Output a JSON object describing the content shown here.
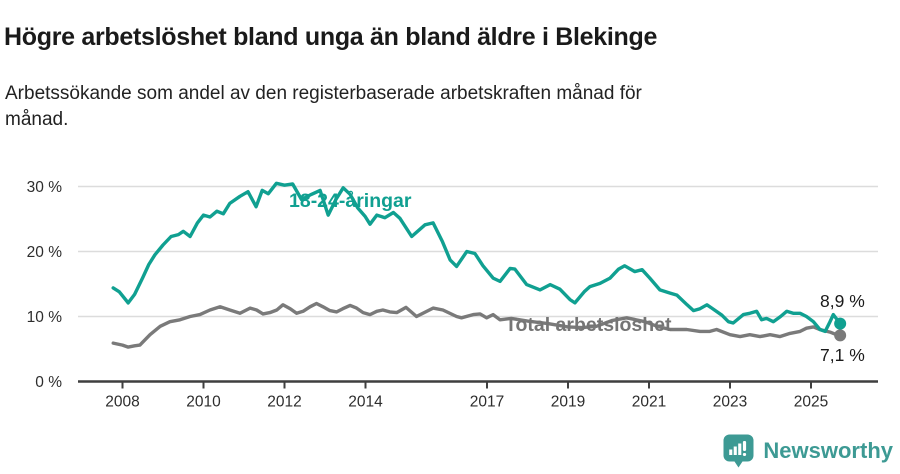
{
  "header": {
    "title": "Högre arbetslöshet bland unga än bland äldre i Blekinge",
    "subtitle": "Arbetssökande som andel av den registerbaserade arbetskraften månad för månad."
  },
  "chart_data": {
    "type": "line",
    "title": "Högre arbetslöshet bland unga än bland äldre i Blekinge",
    "subtitle": "Arbetssökande som andel av den registerbaserade arbetskraften månad för månad.",
    "xlabel": "",
    "ylabel": "",
    "grid": "horizontal",
    "legend_position": "inline-labels",
    "xlim": [
      2007.1,
      2026.65
    ],
    "ylim": [
      0,
      32.5
    ],
    "x_ticks": [
      2008,
      2010,
      2012,
      2014,
      2017,
      2019,
      2021,
      2023,
      2025
    ],
    "y_ticks": [
      {
        "value": 0,
        "label": "0 %"
      },
      {
        "value": 10,
        "label": "10 %"
      },
      {
        "value": 20,
        "label": "20 %"
      },
      {
        "value": 30,
        "label": "30 %"
      }
    ],
    "colors": {
      "young_line": "#10a091",
      "total_line": "#7a7a7a",
      "total_label": "#757575",
      "grid": "#dcdcdc",
      "axis": "#3f3f3f",
      "tick_text": "#2d2d2d",
      "end_label_text": "#1a1a1a"
    },
    "series": [
      {
        "name": "18-24-åringar",
        "color": "#10a091",
        "end_label": "8,9 %",
        "points": [
          [
            2007.77,
            14.4
          ],
          [
            2007.92,
            13.8
          ],
          [
            2008.14,
            12.1
          ],
          [
            2008.3,
            13.4
          ],
          [
            2008.5,
            16.0
          ],
          [
            2008.65,
            18.0
          ],
          [
            2008.8,
            19.5
          ],
          [
            2009.0,
            21.0
          ],
          [
            2009.2,
            22.3
          ],
          [
            2009.38,
            22.6
          ],
          [
            2009.5,
            23.1
          ],
          [
            2009.67,
            22.3
          ],
          [
            2009.85,
            24.4
          ],
          [
            2010.0,
            25.6
          ],
          [
            2010.16,
            25.3
          ],
          [
            2010.33,
            26.2
          ],
          [
            2010.49,
            25.8
          ],
          [
            2010.65,
            27.4
          ],
          [
            2010.9,
            28.5
          ],
          [
            2011.1,
            29.2
          ],
          [
            2011.3,
            26.9
          ],
          [
            2011.45,
            29.4
          ],
          [
            2011.6,
            28.9
          ],
          [
            2011.8,
            30.5
          ],
          [
            2012.0,
            30.2
          ],
          [
            2012.2,
            30.4
          ],
          [
            2012.42,
            28.0
          ],
          [
            2012.67,
            28.8
          ],
          [
            2012.88,
            29.4
          ],
          [
            2013.08,
            25.6
          ],
          [
            2013.27,
            28.0
          ],
          [
            2013.45,
            29.8
          ],
          [
            2013.62,
            28.8
          ],
          [
            2013.81,
            26.7
          ],
          [
            2013.99,
            25.4
          ],
          [
            2014.11,
            24.2
          ],
          [
            2014.28,
            25.6
          ],
          [
            2014.48,
            25.2
          ],
          [
            2014.69,
            26.0
          ],
          [
            2014.85,
            25.1
          ],
          [
            2015.14,
            22.3
          ],
          [
            2015.47,
            24.1
          ],
          [
            2015.67,
            24.4
          ],
          [
            2015.9,
            21.5
          ],
          [
            2016.09,
            18.7
          ],
          [
            2016.25,
            17.7
          ],
          [
            2016.5,
            20.0
          ],
          [
            2016.7,
            19.7
          ],
          [
            2016.9,
            17.8
          ],
          [
            2017.15,
            15.9
          ],
          [
            2017.32,
            15.4
          ],
          [
            2017.57,
            17.4
          ],
          [
            2017.69,
            17.3
          ],
          [
            2017.98,
            14.9
          ],
          [
            2018.31,
            14.1
          ],
          [
            2018.56,
            14.9
          ],
          [
            2018.8,
            14.2
          ],
          [
            2019.05,
            12.6
          ],
          [
            2019.17,
            12.1
          ],
          [
            2019.4,
            13.8
          ],
          [
            2019.54,
            14.6
          ],
          [
            2019.79,
            15.1
          ],
          [
            2020.04,
            15.9
          ],
          [
            2020.25,
            17.3
          ],
          [
            2020.4,
            17.8
          ],
          [
            2020.65,
            16.9
          ],
          [
            2020.83,
            17.2
          ],
          [
            2021.02,
            15.9
          ],
          [
            2021.27,
            14.1
          ],
          [
            2021.52,
            13.6
          ],
          [
            2021.69,
            13.3
          ],
          [
            2021.94,
            11.8
          ],
          [
            2022.1,
            10.9
          ],
          [
            2022.26,
            11.2
          ],
          [
            2022.43,
            11.8
          ],
          [
            2022.55,
            11.3
          ],
          [
            2022.8,
            10.2
          ],
          [
            2022.96,
            9.2
          ],
          [
            2023.08,
            9.0
          ],
          [
            2023.33,
            10.3
          ],
          [
            2023.49,
            10.5
          ],
          [
            2023.66,
            10.8
          ],
          [
            2023.78,
            9.5
          ],
          [
            2023.9,
            9.7
          ],
          [
            2024.07,
            9.2
          ],
          [
            2024.25,
            10.0
          ],
          [
            2024.4,
            10.8
          ],
          [
            2024.56,
            10.5
          ],
          [
            2024.73,
            10.5
          ],
          [
            2024.89,
            10.0
          ],
          [
            2025.06,
            9.2
          ],
          [
            2025.22,
            8.0
          ],
          [
            2025.35,
            7.7
          ],
          [
            2025.47,
            9.2
          ],
          [
            2025.55,
            10.3
          ],
          [
            2025.72,
            8.9
          ]
        ]
      },
      {
        "name": "Total arbetslöshet",
        "color": "#7a7a7a",
        "end_label": "7,1 %",
        "points": [
          [
            2007.77,
            5.9
          ],
          [
            2008.0,
            5.6
          ],
          [
            2008.14,
            5.3
          ],
          [
            2008.3,
            5.5
          ],
          [
            2008.43,
            5.6
          ],
          [
            2008.68,
            7.2
          ],
          [
            2008.93,
            8.5
          ],
          [
            2009.17,
            9.2
          ],
          [
            2009.42,
            9.5
          ],
          [
            2009.67,
            10.0
          ],
          [
            2009.91,
            10.3
          ],
          [
            2010.16,
            11.0
          ],
          [
            2010.41,
            11.5
          ],
          [
            2010.65,
            11.0
          ],
          [
            2010.9,
            10.5
          ],
          [
            2011.15,
            11.3
          ],
          [
            2011.31,
            11.0
          ],
          [
            2011.47,
            10.4
          ],
          [
            2011.64,
            10.6
          ],
          [
            2011.81,
            11.0
          ],
          [
            2011.96,
            11.8
          ],
          [
            2012.14,
            11.2
          ],
          [
            2012.3,
            10.5
          ],
          [
            2012.46,
            10.8
          ],
          [
            2012.63,
            11.5
          ],
          [
            2012.79,
            12.0
          ],
          [
            2012.95,
            11.5
          ],
          [
            2013.12,
            10.9
          ],
          [
            2013.29,
            10.7
          ],
          [
            2013.44,
            11.2
          ],
          [
            2013.62,
            11.7
          ],
          [
            2013.78,
            11.3
          ],
          [
            2013.94,
            10.6
          ],
          [
            2014.11,
            10.3
          ],
          [
            2014.28,
            10.8
          ],
          [
            2014.43,
            11.0
          ],
          [
            2014.6,
            10.7
          ],
          [
            2014.77,
            10.6
          ],
          [
            2015.0,
            11.4
          ],
          [
            2015.26,
            10.0
          ],
          [
            2015.67,
            11.3
          ],
          [
            2015.91,
            11.0
          ],
          [
            2016.25,
            10.0
          ],
          [
            2016.37,
            9.8
          ],
          [
            2016.66,
            10.3
          ],
          [
            2016.83,
            10.4
          ],
          [
            2016.99,
            9.8
          ],
          [
            2017.15,
            10.3
          ],
          [
            2017.32,
            9.5
          ],
          [
            2017.6,
            9.7
          ],
          [
            2018.0,
            9.3
          ],
          [
            2018.5,
            8.9
          ],
          [
            2019.0,
            8.4
          ],
          [
            2019.35,
            8.3
          ],
          [
            2019.7,
            8.5
          ],
          [
            2020.1,
            9.4
          ],
          [
            2020.45,
            9.8
          ],
          [
            2020.9,
            9.2
          ],
          [
            2021.2,
            8.5
          ],
          [
            2021.52,
            8.0
          ],
          [
            2021.93,
            8.0
          ],
          [
            2022.26,
            7.7
          ],
          [
            2022.5,
            7.7
          ],
          [
            2022.67,
            8.0
          ],
          [
            2023.0,
            7.2
          ],
          [
            2023.25,
            6.9
          ],
          [
            2023.49,
            7.2
          ],
          [
            2023.74,
            6.9
          ],
          [
            2023.99,
            7.2
          ],
          [
            2024.23,
            6.9
          ],
          [
            2024.48,
            7.4
          ],
          [
            2024.73,
            7.7
          ],
          [
            2024.89,
            8.2
          ],
          [
            2025.06,
            8.4
          ],
          [
            2025.22,
            8.0
          ],
          [
            2025.47,
            7.6
          ],
          [
            2025.63,
            7.2
          ],
          [
            2025.72,
            7.1
          ]
        ]
      }
    ]
  },
  "footer": {
    "brand": "Newsworthy",
    "brand_color": "#3d9a94",
    "logo_icon": "bar-chart-speech-bubble-icon"
  }
}
